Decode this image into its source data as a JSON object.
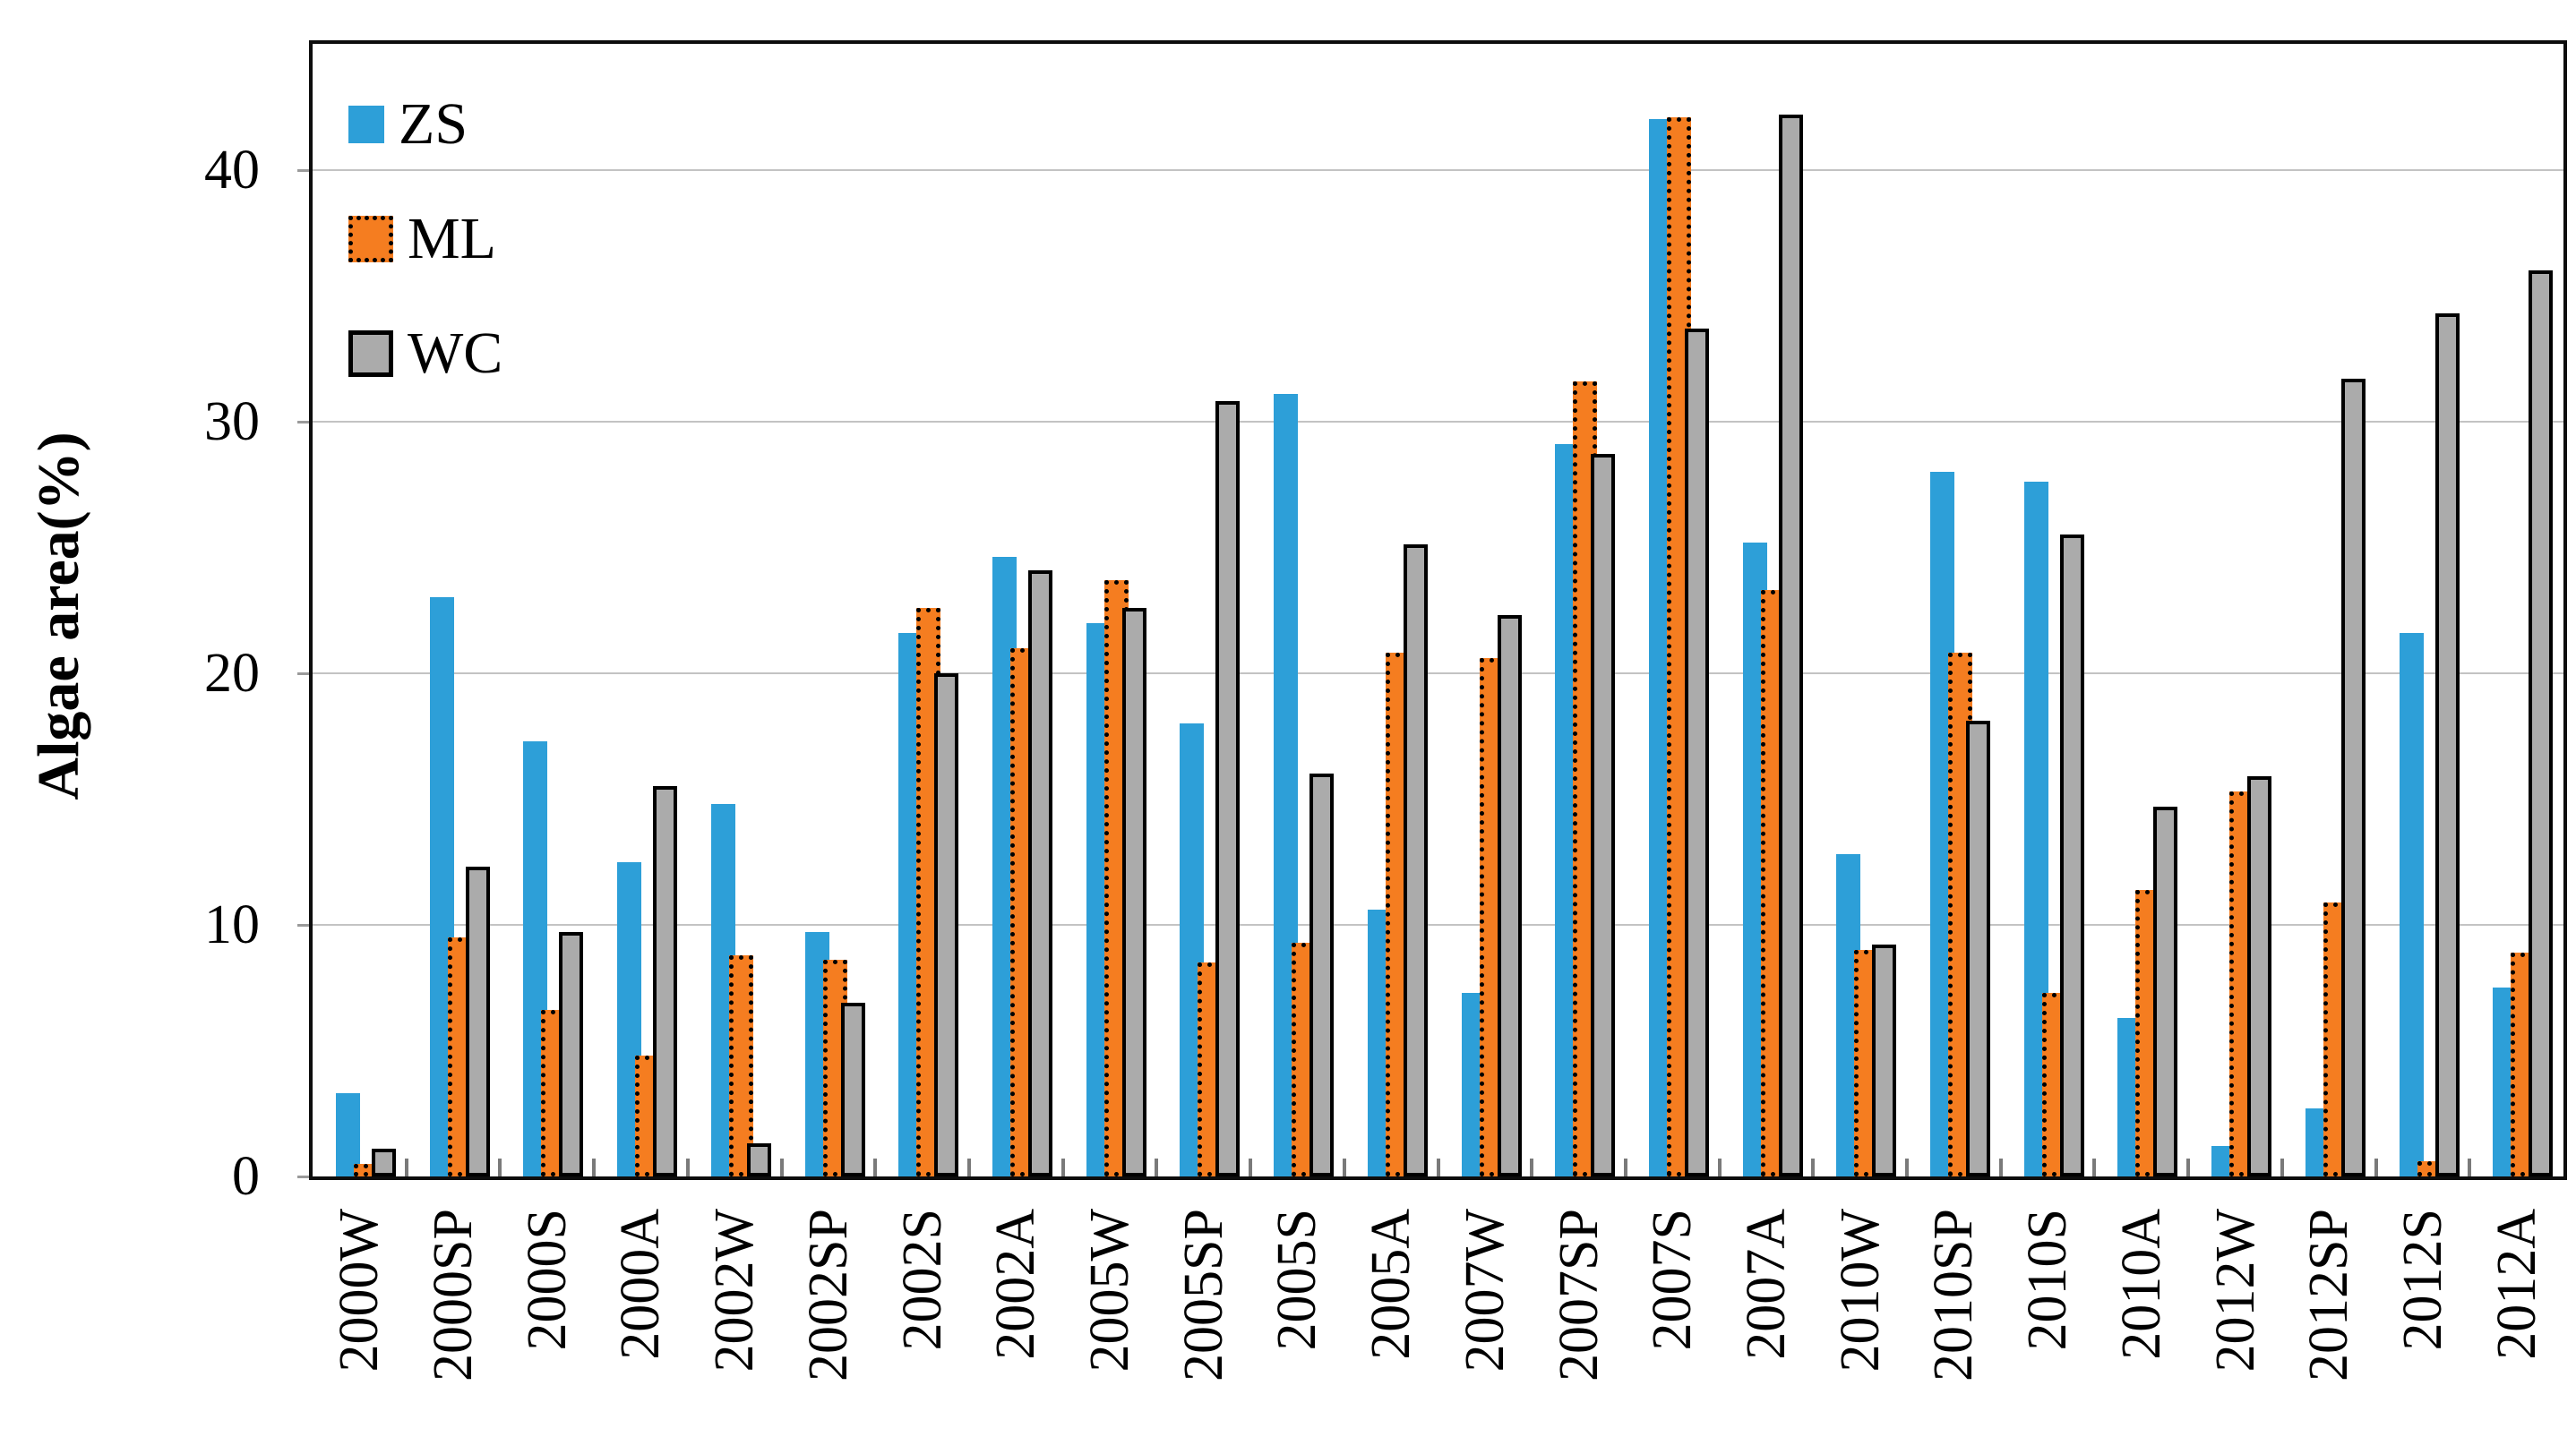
{
  "figure": {
    "background": "#ffffff"
  },
  "chart_data": {
    "type": "bar",
    "title": "",
    "xlabel": "",
    "ylabel": "Algae area(%)",
    "ylim": [
      0,
      45
    ],
    "yticks": [
      0,
      10,
      20,
      30,
      40
    ],
    "grid": "horizontal",
    "gridline_color": "#c3c3c3",
    "frame_color": "#0d0d0d",
    "legend_position": "top-left-inside",
    "categories": [
      "2000W",
      "2000SP",
      "2000S",
      "2000A",
      "2002W",
      "2002SP",
      "2002S",
      "2002A",
      "2005W",
      "2005SP",
      "2005S",
      "2005A",
      "2007W",
      "2007SP",
      "2007S",
      "2007A",
      "2010W",
      "2010SP",
      "2010S",
      "2010A",
      "2012W",
      "2012SP",
      "2012S",
      "2012A"
    ],
    "series": [
      {
        "name": "ZS",
        "color": "#2d9fd8",
        "border_style": "none",
        "border_color": "",
        "values": [
          3.3,
          23.0,
          17.3,
          12.5,
          14.8,
          9.7,
          21.6,
          24.6,
          22.0,
          18.0,
          31.1,
          10.6,
          7.3,
          29.1,
          42.0,
          25.2,
          12.8,
          28.0,
          27.6,
          6.3,
          1.2,
          2.7,
          21.6,
          7.5
        ]
      },
      {
        "name": "ML",
        "color": "#f57d20",
        "border_style": "dotted",
        "border_color": "#000000",
        "values": [
          0.5,
          9.5,
          6.6,
          4.8,
          8.8,
          8.6,
          22.6,
          21.0,
          23.7,
          8.5,
          9.3,
          20.8,
          20.6,
          31.6,
          42.1,
          23.3,
          9.0,
          20.8,
          7.3,
          11.4,
          15.3,
          10.9,
          0.6,
          8.9
        ]
      },
      {
        "name": "WC",
        "color": "#ababab",
        "border_style": "solid",
        "border_color": "#000000",
        "values": [
          1.1,
          12.3,
          9.7,
          15.5,
          1.3,
          6.9,
          20.0,
          24.1,
          22.6,
          30.8,
          16.0,
          25.1,
          22.3,
          28.7,
          33.7,
          42.2,
          9.2,
          18.1,
          25.5,
          14.7,
          15.9,
          31.7,
          34.3,
          36.0
        ]
      }
    ]
  }
}
